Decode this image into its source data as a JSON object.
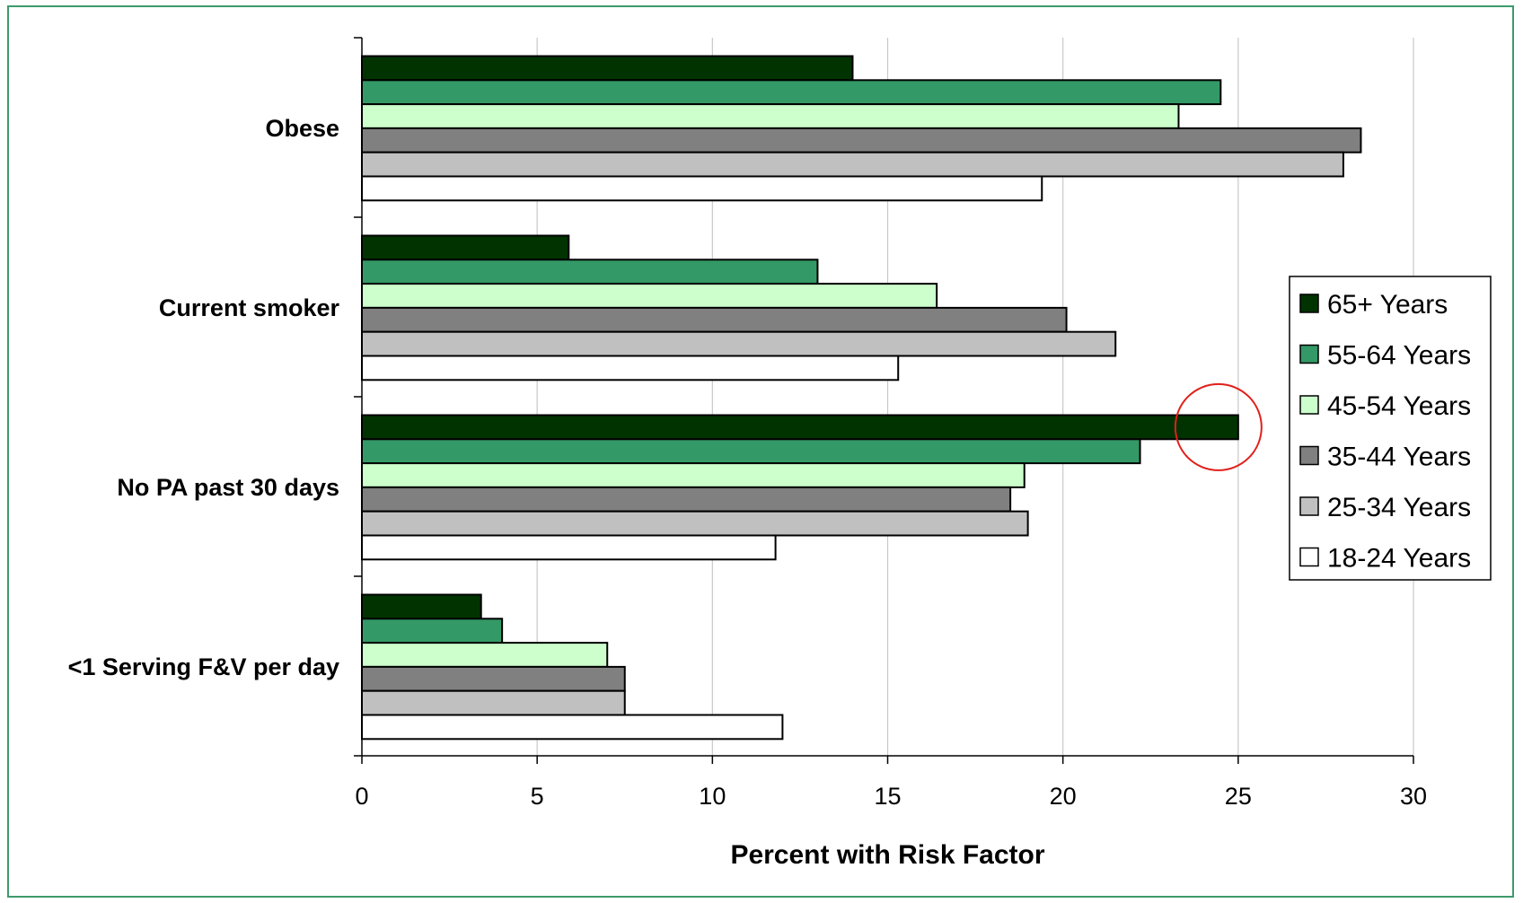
{
  "chart_data": {
    "type": "bar",
    "orientation": "horizontal",
    "categories": [
      "Obese",
      "Current smoker",
      "No PA past 30 days",
      "<1 Serving F&V per day"
    ],
    "series": [
      {
        "name": "65+ Years",
        "color": "#003300",
        "values": [
          14.0,
          5.9,
          25.0,
          3.4
        ]
      },
      {
        "name": "55-64 Years",
        "color": "#339966",
        "values": [
          24.5,
          13.0,
          22.2,
          4.0
        ]
      },
      {
        "name": "45-54 Years",
        "color": "#ccffcc",
        "values": [
          23.3,
          16.4,
          18.9,
          7.0
        ]
      },
      {
        "name": "35-44 Years",
        "color": "#808080",
        "values": [
          28.5,
          20.1,
          18.5,
          7.5
        ]
      },
      {
        "name": "25-34 Years",
        "color": "#c0c0c0",
        "values": [
          28.0,
          21.5,
          19.0,
          7.5
        ]
      },
      {
        "name": "18-24 Years",
        "color": "#ffffff",
        "values": [
          19.4,
          15.3,
          11.8,
          12.0
        ]
      }
    ],
    "xlabel": "Percent with Risk Factor",
    "ylabel": "",
    "xlim": [
      0,
      30
    ],
    "xticks": [
      0,
      5,
      10,
      15,
      20,
      25,
      30
    ],
    "grid": "vertical",
    "legend_placement": "right",
    "annotation": "red circle highlighting the 65+ Years bar for No PA past 30 days"
  },
  "colors": {
    "frame_border": "#3e9a6b",
    "highlight_circle": "#e0201a",
    "gridline": "#c8c8c8"
  }
}
